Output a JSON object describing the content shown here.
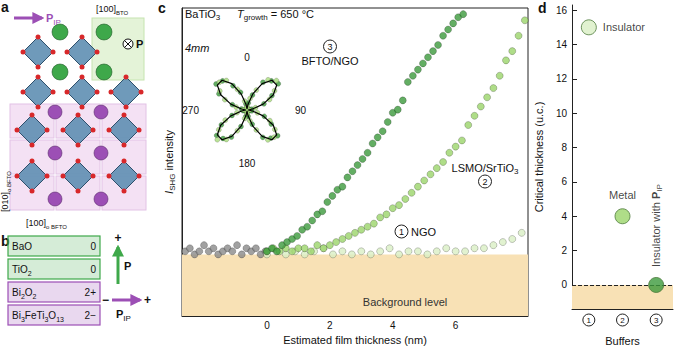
{
  "panel_a": {
    "letter": "a",
    "in_plane_polarization": [
      {
        "t": "P",
        "b": true
      },
      {
        "t": "IP",
        "sub": true
      }
    ],
    "bto_direction": [
      {
        "t": "[100]"
      },
      {
        "t": "BTO",
        "sub": true
      }
    ],
    "out_of_plane_polarization": [
      {
        "t": "P",
        "b": true
      }
    ],
    "bfto_direction_vertical": [
      {
        "t": "[010]"
      },
      {
        "t": "o BFTO",
        "sub": true
      }
    ],
    "bfto_direction_horizontal": [
      {
        "t": "[100]"
      },
      {
        "t": "o BFTO",
        "sub": true
      }
    ]
  },
  "panel_b": {
    "letter": "b",
    "layers": [
      {
        "formula": [
          {
            "t": "BaO"
          }
        ],
        "charge": "0",
        "color": "#3ea84a"
      },
      {
        "formula": [
          {
            "t": "TiO"
          },
          {
            "t": "2",
            "sub": true
          }
        ],
        "charge": "0",
        "color": "#3ea84a"
      },
      {
        "formula": [
          {
            "t": "Bi"
          },
          {
            "t": "2",
            "sub": true
          },
          {
            "t": "O"
          },
          {
            "t": "2",
            "sub": true
          }
        ],
        "charge": "2+",
        "color": "#9c4fb5"
      },
      {
        "formula": [
          {
            "t": "Bi"
          },
          {
            "t": "3",
            "sub": true
          },
          {
            "t": "FeTi"
          },
          {
            "t": "3",
            "sub": true
          },
          {
            "t": "O"
          },
          {
            "t": "13",
            "sub": true
          }
        ],
        "charge": "2−",
        "color": "#9c4fb5"
      }
    ],
    "polarization": {
      "label": [
        {
          "t": "P",
          "b": true
        }
      ],
      "sign": "+",
      "color": "#3ea84a"
    },
    "in_plane_polarization": {
      "label": [
        {
          "t": "P",
          "b": true
        },
        {
          "t": "IP",
          "sub": true
        }
      ],
      "signs": [
        "−",
        "+"
      ],
      "color": "#9c4fb5"
    }
  },
  "chart_data": [
    {
      "letter": "c",
      "type": "scatter",
      "title": [
        {
          "t": "BaTiO"
        },
        {
          "t": "3",
          "sub": true
        }
      ],
      "subtitle": [
        {
          "t": "T",
          "i": true
        },
        {
          "t": "growth",
          "sub": true
        },
        {
          "t": " = 650 °C"
        }
      ],
      "x_label": "Estimated film thickness (nm)",
      "y_label": [
        {
          "t": "I",
          "i": true
        },
        {
          "t": "SHG",
          "sub": true
        },
        {
          "t": " intensity"
        }
      ],
      "xlim": [
        -2.7,
        8.3
      ],
      "xticks": [
        0,
        2,
        4,
        6
      ],
      "ylim": [
        0,
        100
      ],
      "tick_labels": "x",
      "background_band": {
        "range": [
          0,
          20
        ],
        "label": "Background level"
      },
      "series": [
        {
          "color": "#8a8a8a",
          "x": [
            -2.6,
            -2.45,
            -2.3,
            -2.15,
            -2.0,
            -1.85,
            -1.7,
            -1.55,
            -1.4,
            -1.25,
            -1.1,
            -0.95,
            -0.8,
            -0.65,
            -0.5,
            -0.35,
            -0.2,
            -0.05
          ],
          "values": [
            21,
            22,
            20,
            21,
            23,
            21,
            22,
            20,
            21,
            22,
            21,
            23,
            20,
            22,
            21,
            22,
            20,
            21
          ]
        },
        {
          "name": "NGO",
          "number": "1",
          "color": "#d9efc4",
          "x": [
            0,
            0.3,
            0.6,
            0.9,
            1.2,
            1.5,
            1.8,
            2.1,
            2.4,
            2.7,
            3.0,
            3.3,
            3.6,
            3.9,
            4.2,
            4.5,
            4.8,
            5.1,
            5.4,
            5.7,
            6.0,
            6.3,
            6.6,
            6.9,
            7.2,
            7.5,
            7.8,
            8.1
          ],
          "values": [
            20,
            21,
            20,
            21,
            20,
            21,
            22,
            20,
            21,
            20,
            21,
            20,
            21,
            22,
            20,
            21,
            21,
            20,
            21,
            22,
            21,
            21,
            22,
            22,
            23,
            24,
            25,
            27
          ]
        },
        {
          "name": [
            {
              "t": "LSMO/SrTiO"
            },
            {
              "t": "3",
              "sub": true
            }
          ],
          "number": "2",
          "color": "#9bd46a",
          "x": [
            0,
            0.2,
            0.4,
            0.6,
            0.8,
            1.0,
            1.2,
            1.4,
            1.6,
            1.8,
            2.0,
            2.2,
            2.4,
            2.6,
            2.8,
            3.0,
            3.2,
            3.4,
            3.6,
            3.8,
            4.0,
            4.2,
            4.4,
            4.6,
            4.8,
            5.0,
            5.2,
            5.4,
            5.6,
            5.8,
            6.0,
            6.2,
            6.4,
            6.6,
            6.8,
            7.0,
            7.2,
            7.4,
            7.6,
            7.8,
            8.0,
            8.2
          ],
          "values": [
            21,
            22,
            21,
            22,
            21,
            22,
            22,
            21,
            23,
            22,
            23,
            24,
            25,
            26,
            27,
            28,
            29,
            30,
            32,
            33,
            35,
            36,
            38,
            40,
            42,
            44,
            46,
            48,
            50,
            53,
            55,
            57,
            62,
            65,
            68,
            71,
            74,
            78,
            83,
            86,
            91,
            96
          ]
        },
        {
          "name": "BFTO/NGO",
          "number": "3",
          "color": "#3c9a3c",
          "x": [
            0.0,
            0.16,
            0.32,
            0.48,
            0.64,
            0.8,
            0.96,
            1.12,
            1.28,
            1.44,
            1.6,
            1.76,
            1.92,
            2.08,
            2.24,
            2.4,
            2.56,
            2.72,
            2.88,
            3.04,
            3.2,
            3.36,
            3.52,
            3.68,
            3.84,
            4.0,
            4.16,
            4.32,
            4.48,
            4.64,
            4.8,
            4.96,
            5.12,
            5.28,
            5.44,
            5.6,
            5.76,
            5.92,
            6.08,
            6.24
          ],
          "values": [
            21,
            22,
            21,
            23,
            24,
            25,
            26,
            28,
            29,
            31,
            33,
            34,
            37,
            39,
            41,
            42,
            45,
            47,
            49,
            51,
            53,
            56,
            58,
            60,
            63,
            66,
            67,
            70,
            76,
            78,
            80,
            82,
            84,
            86,
            88,
            91,
            93,
            95,
            97,
            98
          ]
        }
      ],
      "inset": {
        "type": "polar",
        "label": [
          {
            "t": "4mm",
            "i": true
          }
        ],
        "angle_range": [
          0,
          360
        ],
        "angle_ticks": [
          0,
          90,
          180,
          270
        ],
        "rlim": [
          0,
          1.1
        ],
        "series": [
          {
            "type": "scatter",
            "color": "#3c9a3c",
            "angles": [
              0,
              10,
              20,
              30,
              40,
              50,
              60,
              70,
              80,
              90,
              100,
              110,
              120,
              130,
              140,
              150,
              160,
              170,
              180,
              190,
              200,
              210,
              220,
              230,
              240,
              250,
              260,
              270,
              280,
              290,
              300,
              310,
              320,
              330,
              340,
              350
            ],
            "values": [
              0.05,
              0.18,
              0.4,
              0.8,
              0.95,
              1.02,
              0.72,
              0.45,
              0.12,
              0.06,
              0.12,
              0.46,
              0.7,
              1.0,
              0.92,
              0.79,
              0.38,
              0.16,
              0.04,
              0.16,
              0.44,
              0.78,
              0.93,
              0.99,
              0.74,
              0.4,
              0.1,
              0.07,
              0.14,
              0.39,
              0.81,
              1.01,
              0.95,
              0.7,
              0.47,
              0.15
            ]
          },
          {
            "type": "scatter",
            "color": "#a9dc7c",
            "angles": [
              5,
              15,
              25,
              35,
              45,
              55,
              65,
              75,
              85,
              95,
              105,
              115,
              125,
              135,
              145,
              155,
              165,
              175,
              185,
              195,
              205,
              215,
              225,
              235,
              245,
              255,
              265,
              275,
              285,
              295,
              305,
              315,
              325,
              335,
              345,
              355
            ],
            "values": [
              0.08,
              0.3,
              0.55,
              0.92,
              1.04,
              0.84,
              0.62,
              0.22,
              0.06,
              0.05,
              0.27,
              0.63,
              0.85,
              0.96,
              0.91,
              0.55,
              0.28,
              0.09,
              0.07,
              0.22,
              0.57,
              0.9,
              1.05,
              0.86,
              0.6,
              0.26,
              0.04,
              0.09,
              0.28,
              0.61,
              0.83,
              0.98,
              0.9,
              0.57,
              0.23,
              0.06
            ]
          },
          {
            "type": "line",
            "color": "#000000",
            "angles": [
              0,
              10,
              20,
              30,
              40,
              50,
              60,
              70,
              80,
              90,
              100,
              110,
              120,
              130,
              140,
              150,
              160,
              170,
              180,
              190,
              200,
              210,
              220,
              230,
              240,
              250,
              260,
              270,
              280,
              290,
              300,
              310,
              320,
              330,
              340,
              350,
              360
            ],
            "values": [
              0.03,
              0.14,
              0.43,
              0.76,
              0.97,
              0.97,
              0.76,
              0.43,
              0.14,
              0.03,
              0.14,
              0.43,
              0.76,
              0.97,
              0.97,
              0.76,
              0.43,
              0.14,
              0.03,
              0.14,
              0.43,
              0.76,
              0.97,
              0.97,
              0.76,
              0.43,
              0.14,
              0.03,
              0.14,
              0.43,
              0.76,
              0.97,
              0.97,
              0.76,
              0.43,
              0.14,
              0.03
            ]
          }
        ]
      }
    },
    {
      "letter": "d",
      "type": "scatter",
      "categories": [
        "1",
        "2",
        "3"
      ],
      "x_label": "Buffers",
      "y_label": "Critical thickness (u.c.)",
      "values": [
        15,
        4,
        0
      ],
      "colors": [
        "#d9efc4",
        "#9bd46a",
        "#3c9a3c"
      ],
      "point_labels": [
        "Insulator",
        "Metal",
        [
          {
            "t": "Insulator with "
          },
          {
            "t": "P",
            "b": true
          },
          {
            "t": "IP",
            "sub": true
          }
        ]
      ],
      "ylim": [
        -1.4,
        16.3
      ],
      "yticks": [
        0,
        2,
        4,
        6,
        8,
        10,
        12,
        14,
        16
      ],
      "reference_line": 0
    }
  ]
}
